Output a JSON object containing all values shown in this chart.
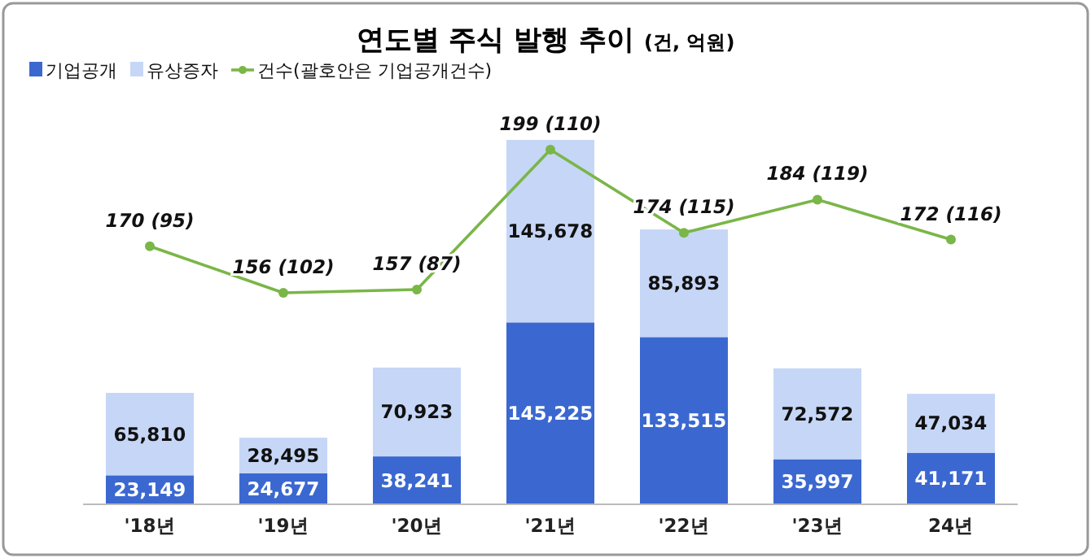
{
  "chart_data": {
    "type": "bar",
    "title": "연도별 주식 발행 추이",
    "subtitle": "(건, 억원)",
    "categories": [
      "'18년",
      "'19년",
      "'20년",
      "'21년",
      "'22년",
      "'23년",
      "24년"
    ],
    "stacked": true,
    "legend": "top left",
    "series": [
      {
        "name": "기업공개",
        "color": "#3b68d0",
        "values": [
          23149,
          24677,
          38241,
          145225,
          133515,
          35997,
          41171
        ],
        "value_labels": [
          "23,149",
          "24,677",
          "38,241",
          "145,225",
          "133,515",
          "35,997",
          "41,171"
        ]
      },
      {
        "name": "유상증자",
        "color": "#c6d6f6",
        "values": [
          65810,
          28495,
          70923,
          145678,
          85893,
          72572,
          47034
        ],
        "value_labels": [
          "65,810",
          "28,495",
          "70,923",
          "145,678",
          "85,893",
          "72,572",
          "47,034"
        ]
      },
      {
        "name": "건수(괄호안은 기업공개건수)",
        "type": "line",
        "axis": "y2",
        "color": "#7ab648",
        "marker": "circle",
        "values": [
          170,
          156,
          157,
          199,
          174,
          184,
          172
        ],
        "value_labels": [
          "170 (95)",
          "156 (102)",
          "157 (87)",
          "199 (110)",
          "174 (115)",
          "184 (119)",
          "172 (116)"
        ]
      }
    ]
  }
}
